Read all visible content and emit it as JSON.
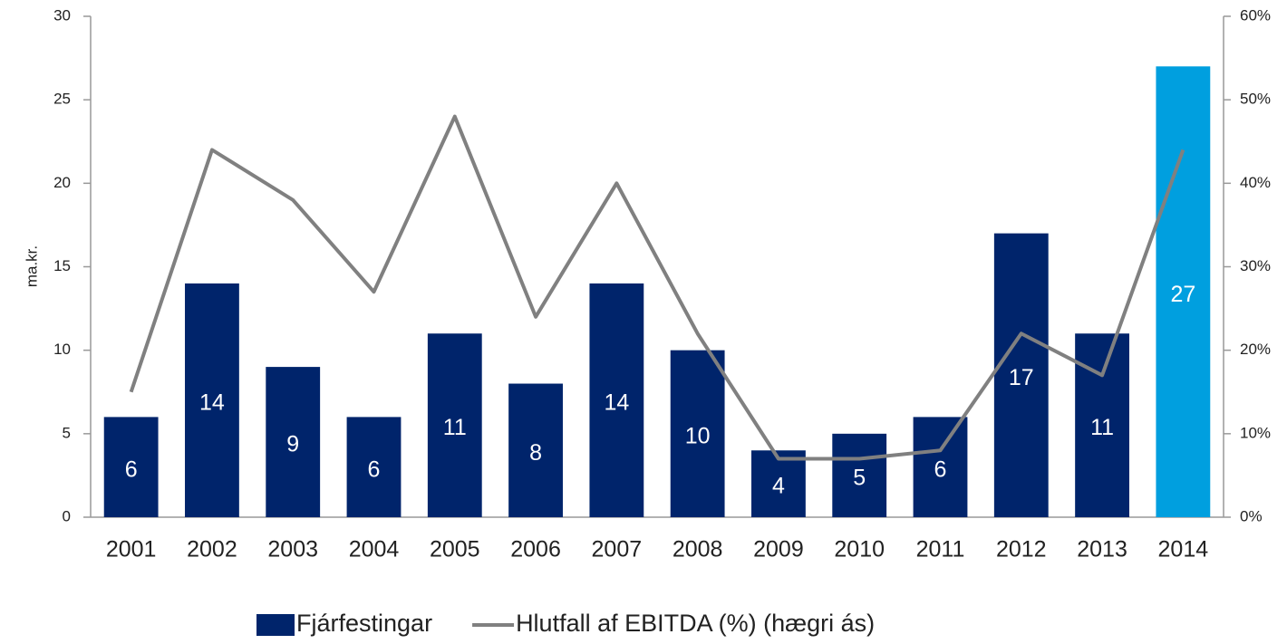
{
  "chart_data": {
    "type": "bar-line",
    "y_label": "ma.kr.",
    "categories": [
      "2001",
      "2002",
      "2003",
      "2004",
      "2005",
      "2006",
      "2007",
      "2008",
      "2009",
      "2010",
      "2011",
      "2012",
      "2013",
      "2014"
    ],
    "series": [
      {
        "name": "Fjárfestingar",
        "type": "bar",
        "color": "#00246b",
        "colors": [
          "#00246b",
          "#00246b",
          "#00246b",
          "#00246b",
          "#00246b",
          "#00246b",
          "#00246b",
          "#00246b",
          "#00246b",
          "#00246b",
          "#00246b",
          "#00246b",
          "#00246b",
          "#009fdf"
        ],
        "values": [
          6,
          14,
          9,
          6,
          11,
          8,
          14,
          10,
          4,
          5,
          6,
          17,
          11,
          27
        ]
      },
      {
        "name": "Hlutfall af EBITDA (%) (hægri ás)",
        "type": "line",
        "axis": "y2",
        "color": "#808080",
        "values": [
          15,
          44,
          38,
          27,
          48,
          24,
          40,
          22,
          7,
          7,
          8,
          22,
          17,
          44
        ]
      }
    ],
    "ylim": [
      0,
      30
    ],
    "yticks": [
      0,
      5,
      10,
      15,
      20,
      25,
      30
    ],
    "y2lim": [
      0,
      60
    ],
    "y2ticks": [
      {
        "value": 0,
        "label": "0%"
      },
      {
        "value": 10,
        "label": "10%"
      },
      {
        "value": 20,
        "label": "20%"
      },
      {
        "value": 30,
        "label": "30%"
      },
      {
        "value": 40,
        "label": "40%"
      },
      {
        "value": 50,
        "label": "50%"
      },
      {
        "value": 60,
        "label": "60%"
      }
    ],
    "grid": false,
    "legend": "bottom"
  }
}
